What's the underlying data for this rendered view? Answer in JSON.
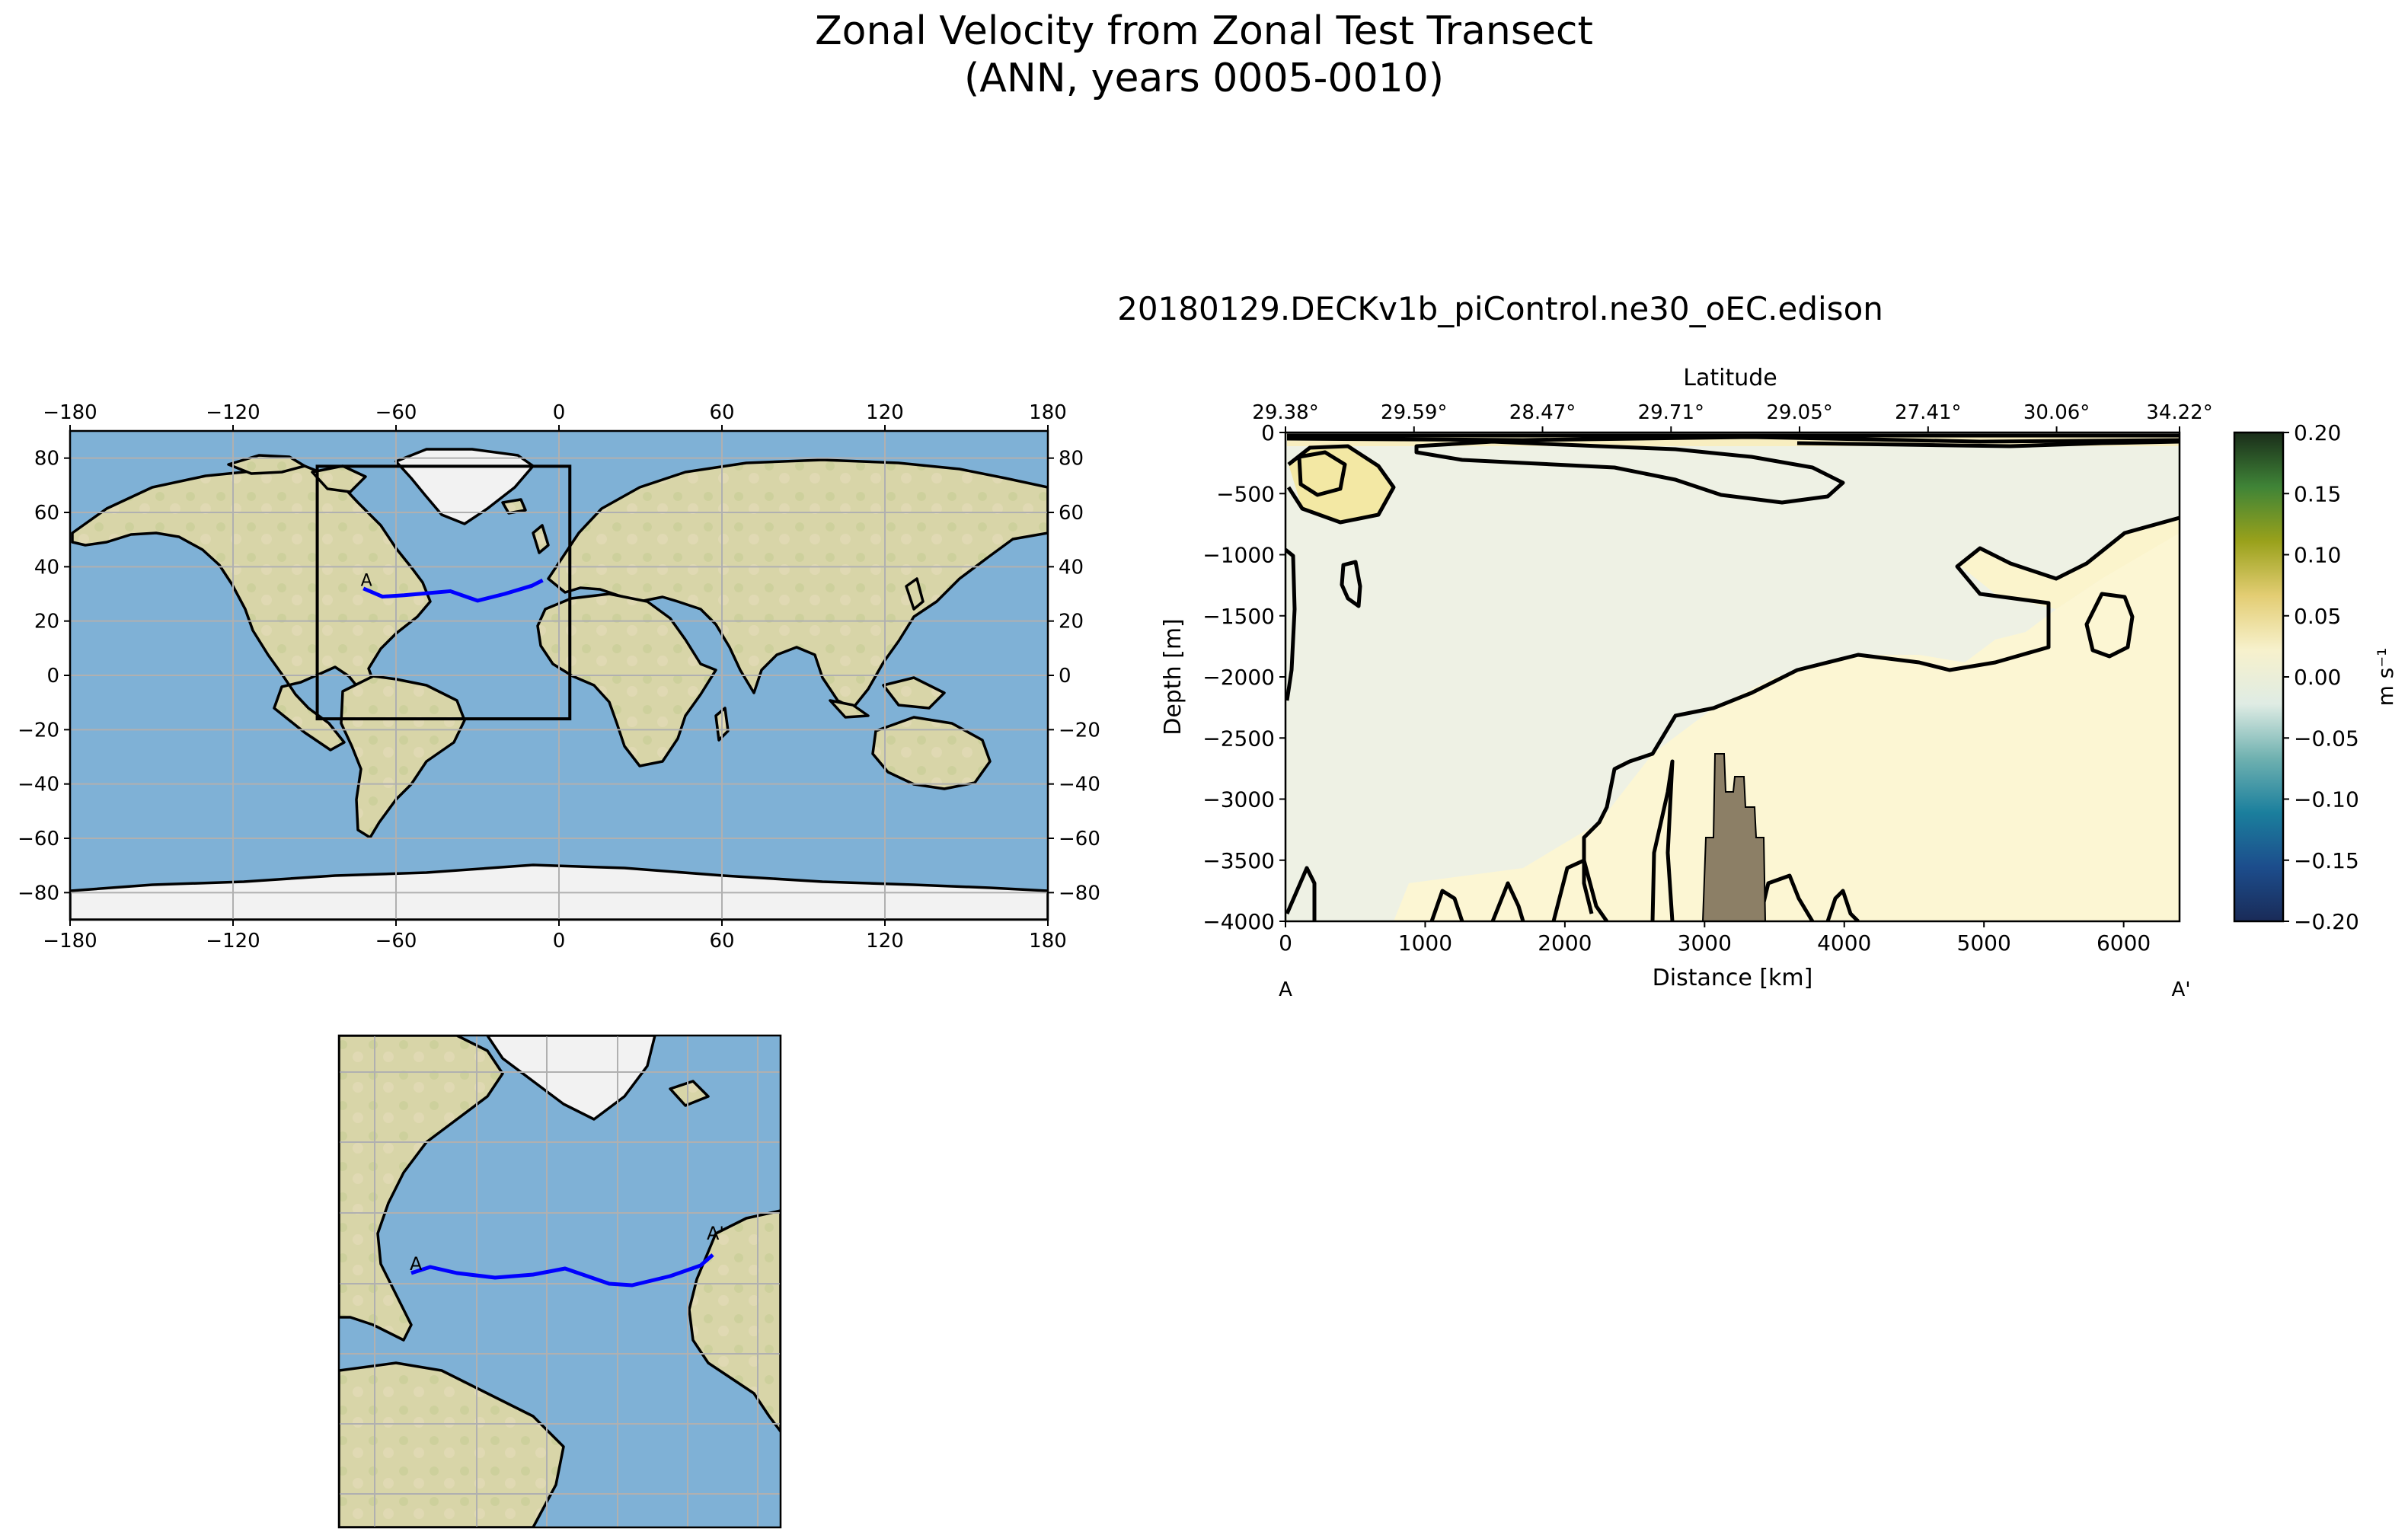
{
  "figure": {
    "title_line1": "Zonal Velocity from Zonal Test Transect",
    "title_line2": "(ANN, years 0005-0010)"
  },
  "map": {
    "xticks": [
      -180,
      -120,
      -60,
      0,
      60,
      120,
      180
    ],
    "yticks": [
      -80,
      -60,
      -40,
      -20,
      0,
      20,
      40,
      60,
      80
    ],
    "xlim": [
      -180,
      180
    ],
    "ylim": [
      -90,
      90
    ],
    "region_box": {
      "lon": [
        -89,
        4
      ],
      "lat": [
        -16,
        77
      ]
    },
    "transect_label": "A",
    "transect_color": "#0000ff",
    "ocean_color": "#7fb1d6",
    "land_color": "#d9d4a6",
    "ice_color": "#f2f2f2",
    "gridlines": true
  },
  "inset": {
    "transect_label_start": "A",
    "transect_label_end": "A'"
  },
  "chart_data": {
    "type": "heatmap",
    "title": "20180129.DECKv1b_piControl.ne30_oEC.edison",
    "xlabel": "Distance [km]",
    "ylabel": "Depth [m]",
    "top_xlabel": "Latitude",
    "xlim": [
      0,
      6400
    ],
    "ylim": [
      -4000,
      0
    ],
    "xticks": [
      0,
      1000,
      2000,
      3000,
      4000,
      5000,
      6000
    ],
    "yticks": [
      0,
      -500,
      -1000,
      -1500,
      -2000,
      -2500,
      -3000,
      -3500,
      -4000
    ],
    "top_xticks": [
      "29.38°",
      "29.59°",
      "28.47°",
      "29.71°",
      "29.05°",
      "27.41°",
      "30.06°",
      "34.22°"
    ],
    "top_xtick_positions_km": [
      0,
      920,
      1840,
      2760,
      3680,
      4600,
      5520,
      6440
    ],
    "start_label": "A",
    "end_label": "A'",
    "colorbar": {
      "label": "m s⁻¹",
      "ticks": [
        0.2,
        0.15,
        0.1,
        0.05,
        0.0,
        -0.05,
        -0.1,
        -0.15,
        -0.2
      ],
      "tick_labels": [
        "0.20",
        "0.15",
        "0.10",
        "0.05",
        "0.00",
        "−0.05",
        "−0.10",
        "−0.15",
        "−0.20"
      ],
      "range": [
        -0.2,
        0.2
      ],
      "colors_bottom_to_top": [
        "#1a2b58",
        "#1c4d8c",
        "#1b7f9d",
        "#6fb1b0",
        "#dfece4",
        "#f7f1cc",
        "#e3cd73",
        "#99a11b",
        "#3f8437",
        "#1a2d1a"
      ]
    },
    "bathymetry_color": "#8c7f66",
    "field_colors": {
      "near_zero_negative": "#eef1e4",
      "near_zero_positive": "#fcf6d3",
      "positive": "#f5eaa8"
    }
  }
}
